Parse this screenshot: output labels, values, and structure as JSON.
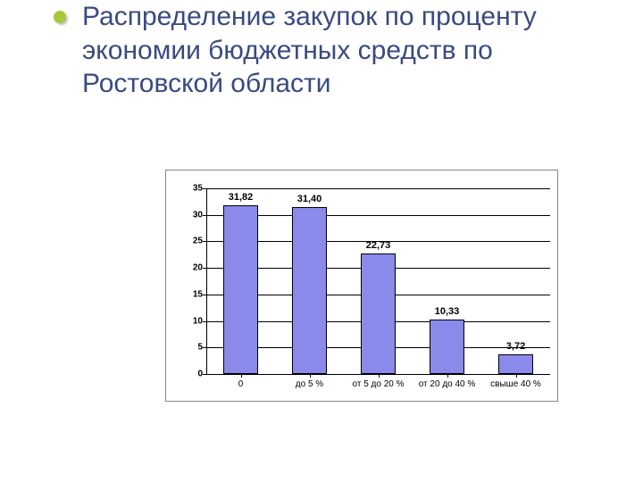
{
  "slide": {
    "title": "Распределение закупок по проценту экономии бюджетных средств по Ростовской области",
    "title_color": "#3a4a7f",
    "bullet_color": "#a8c83c"
  },
  "chart": {
    "type": "bar",
    "background_color": "#ffffff",
    "border_color": "#888888",
    "plot_grid_color": "#000000",
    "bar_color": "#8a8aea",
    "bar_border_color": "#000000",
    "ylim": [
      0,
      35
    ],
    "ytick_step": 5,
    "yticks": [
      "0",
      "5",
      "10",
      "15",
      "20",
      "25",
      "30",
      "35"
    ],
    "label_fontsize": 10,
    "value_fontsize": 11,
    "bar_width_pct": 10,
    "bar_gap_pct": 10,
    "categories": [
      "0",
      "до 5 %",
      "от 5 до 20 %",
      "от 20 до 40 %",
      "свыше 40 %"
    ],
    "values": [
      31.82,
      31.4,
      22.73,
      10.33,
      3.72
    ],
    "value_labels": [
      "31,82",
      "31,40",
      "22,73",
      "10,33",
      "3,72"
    ]
  }
}
